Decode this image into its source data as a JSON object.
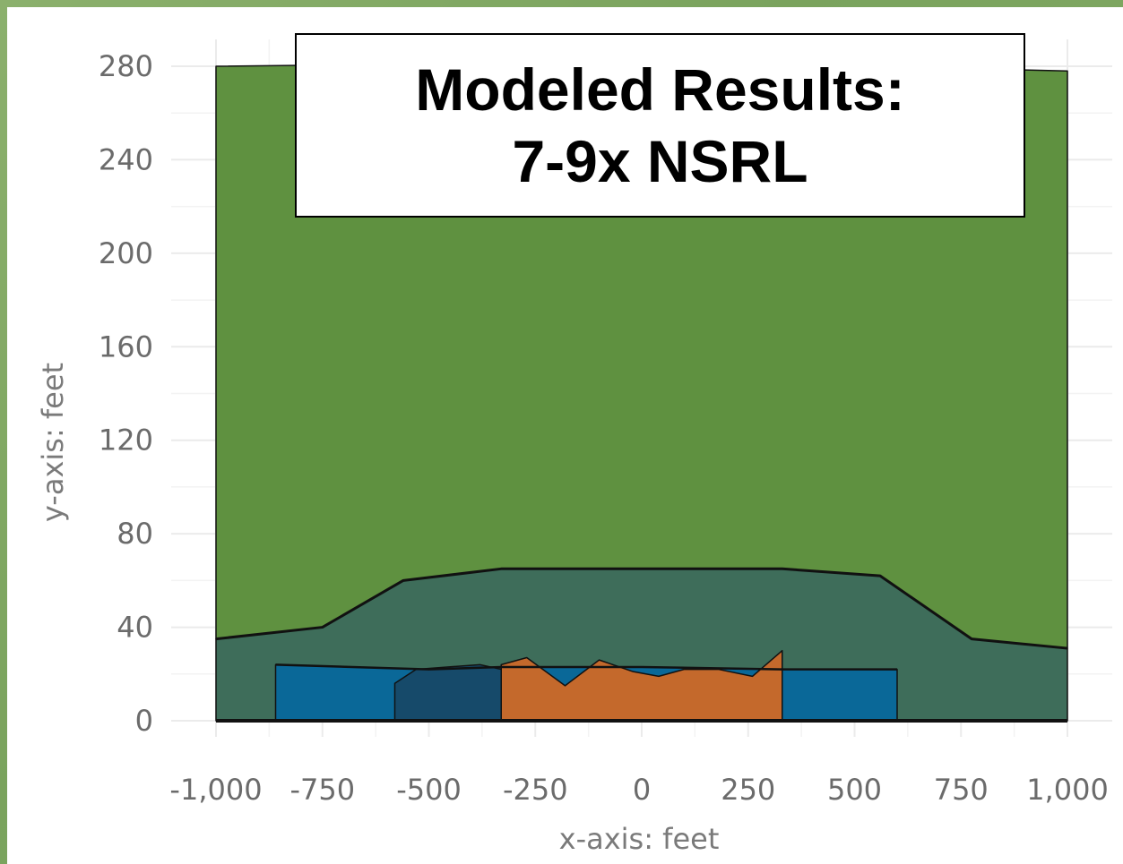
{
  "chart_data": {
    "type": "area",
    "title_lines": [
      "Modeled Results:",
      "7-9x NSRL"
    ],
    "xlabel": "x-axis: feet",
    "ylabel": "y-axis: feet",
    "xlim": [
      -1000,
      1000
    ],
    "ylim": [
      0,
      280
    ],
    "x_ticks": [
      -1000,
      -750,
      -500,
      -250,
      0,
      250,
      500,
      750,
      1000
    ],
    "x_tick_labels": [
      "-1,000",
      "-750",
      "-500",
      "-250",
      "0",
      "250",
      "500",
      "750",
      "1,000"
    ],
    "y_ticks": [
      0,
      40,
      80,
      120,
      160,
      200,
      240,
      280
    ],
    "y_tick_labels": [
      "0",
      "40",
      "80",
      "120",
      "160",
      "200",
      "240",
      "280"
    ],
    "grid": true,
    "colors": {
      "upper": "#5f9140",
      "middle": "#3e6d5a",
      "lower_blue": "#0a6898",
      "dark_blue": "#164a6a",
      "orange": "#c4692c",
      "outline": "#111111",
      "grid": "#ebebeb"
    },
    "series": [
      {
        "color_key": "upper",
        "top": [
          [
            -1000,
            280
          ],
          [
            -500,
            281
          ],
          [
            0,
            281
          ],
          [
            500,
            280
          ],
          [
            1000,
            278
          ]
        ],
        "bottom": [
          [
            -1000,
            35
          ],
          [
            -750,
            40
          ],
          [
            -560,
            60
          ],
          [
            -330,
            65
          ],
          [
            0,
            65
          ],
          [
            330,
            65
          ],
          [
            560,
            62
          ],
          [
            775,
            35
          ],
          [
            1000,
            31
          ]
        ]
      },
      {
        "color_key": "middle",
        "top": [
          [
            -1000,
            35
          ],
          [
            -750,
            40
          ],
          [
            -560,
            60
          ],
          [
            -330,
            65
          ],
          [
            0,
            65
          ],
          [
            330,
            65
          ],
          [
            560,
            62
          ],
          [
            775,
            35
          ],
          [
            1000,
            31
          ]
        ],
        "bottom": [
          [
            -1000,
            0
          ],
          [
            1000,
            0
          ]
        ]
      },
      {
        "color_key": "lower_blue",
        "top": [
          [
            -860,
            24
          ],
          [
            -500,
            22
          ],
          [
            -330,
            23
          ],
          [
            0,
            23
          ],
          [
            330,
            22
          ],
          [
            600,
            22
          ]
        ],
        "bottom": [
          [
            -860,
            0
          ],
          [
            600,
            0
          ]
        ]
      },
      {
        "color_key": "dark_blue",
        "top": [
          [
            -580,
            16
          ],
          [
            -530,
            22
          ],
          [
            -380,
            24
          ],
          [
            -330,
            22
          ]
        ],
        "bottom": [
          [
            -580,
            0
          ],
          [
            -330,
            0
          ]
        ]
      },
      {
        "color_key": "orange",
        "top": [
          [
            -330,
            24
          ],
          [
            -270,
            27
          ],
          [
            -180,
            15
          ],
          [
            -100,
            26
          ],
          [
            -20,
            21
          ],
          [
            40,
            19
          ],
          [
            100,
            22
          ],
          [
            180,
            22
          ],
          [
            260,
            19
          ],
          [
            330,
            30
          ]
        ],
        "bottom": [
          [
            -330,
            0
          ],
          [
            330,
            0
          ]
        ]
      }
    ],
    "boundary_line": [
      [
        -1000,
        35
      ],
      [
        -750,
        40
      ],
      [
        -560,
        60
      ],
      [
        -330,
        65
      ],
      [
        0,
        65
      ],
      [
        330,
        65
      ],
      [
        560,
        62
      ],
      [
        775,
        35
      ],
      [
        1000,
        31
      ]
    ],
    "lower_line": [
      [
        -860,
        24
      ],
      [
        -500,
        22
      ],
      [
        -330,
        23
      ],
      [
        0,
        23
      ],
      [
        330,
        22
      ],
      [
        600,
        22
      ]
    ]
  }
}
